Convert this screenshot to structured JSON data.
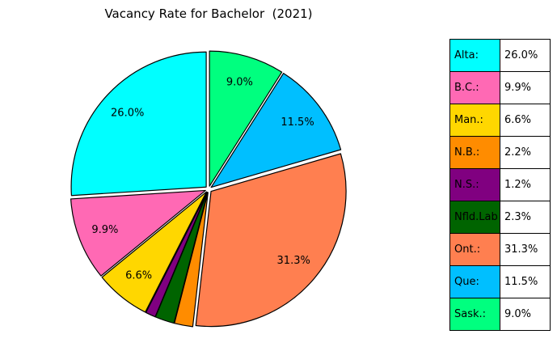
{
  "chart_data": {
    "type": "pie",
    "title": "Vacancy Rate for Bachelor  (2021)",
    "slices": [
      {
        "label": "Alta:",
        "value": 26.0,
        "text": "26.0%",
        "color": "#00FFFF",
        "show_label": true
      },
      {
        "label": "B.C.:",
        "value": 9.9,
        "text": "9.9%",
        "color": "#FF69B4",
        "show_label": true
      },
      {
        "label": "Man.:",
        "value": 6.6,
        "text": "6.6%",
        "color": "#FFD700",
        "show_label": true
      },
      {
        "label": "N.S.:",
        "value": 1.2,
        "text": "1.2%",
        "color": "#800080",
        "show_label": false
      },
      {
        "label": "Nfld.Lab",
        "value": 2.3,
        "text": "2.3%",
        "color": "#006400",
        "show_label": false
      },
      {
        "label": "N.B.:",
        "value": 2.2,
        "text": "2.2%",
        "color": "#FF8C00",
        "show_label": false
      },
      {
        "label": "Ont.:",
        "value": 31.3,
        "text": "31.3%",
        "color": "#FF7F50",
        "show_label": true
      },
      {
        "label": "Que:",
        "value": 11.5,
        "text": "11.5%",
        "color": "#00BFFF",
        "show_label": true
      },
      {
        "label": "Sask.:",
        "value": 9.0,
        "text": "9.0%",
        "color": "#00FF7F",
        "show_label": true
      }
    ],
    "legend": [
      {
        "label": "Alta:",
        "text": "26.0%",
        "color": "#00FFFF"
      },
      {
        "label": "B.C.:",
        "text": "9.9%",
        "color": "#FF69B4"
      },
      {
        "label": "Man.:",
        "text": "6.6%",
        "color": "#FFD700"
      },
      {
        "label": "N.B.:",
        "text": "2.2%",
        "color": "#FF8C00"
      },
      {
        "label": "N.S.:",
        "text": "1.2%",
        "color": "#800080"
      },
      {
        "label": "Nfld.Lab",
        "text": "2.3%",
        "color": "#006400"
      },
      {
        "label": "Ont.:",
        "text": "31.3%",
        "color": "#FF7F50"
      },
      {
        "label": "Que:",
        "text": "11.5%",
        "color": "#00BFFF"
      },
      {
        "label": "Sask.:",
        "text": "9.0%",
        "color": "#00FF7F"
      }
    ],
    "legend_placement": "right"
  }
}
